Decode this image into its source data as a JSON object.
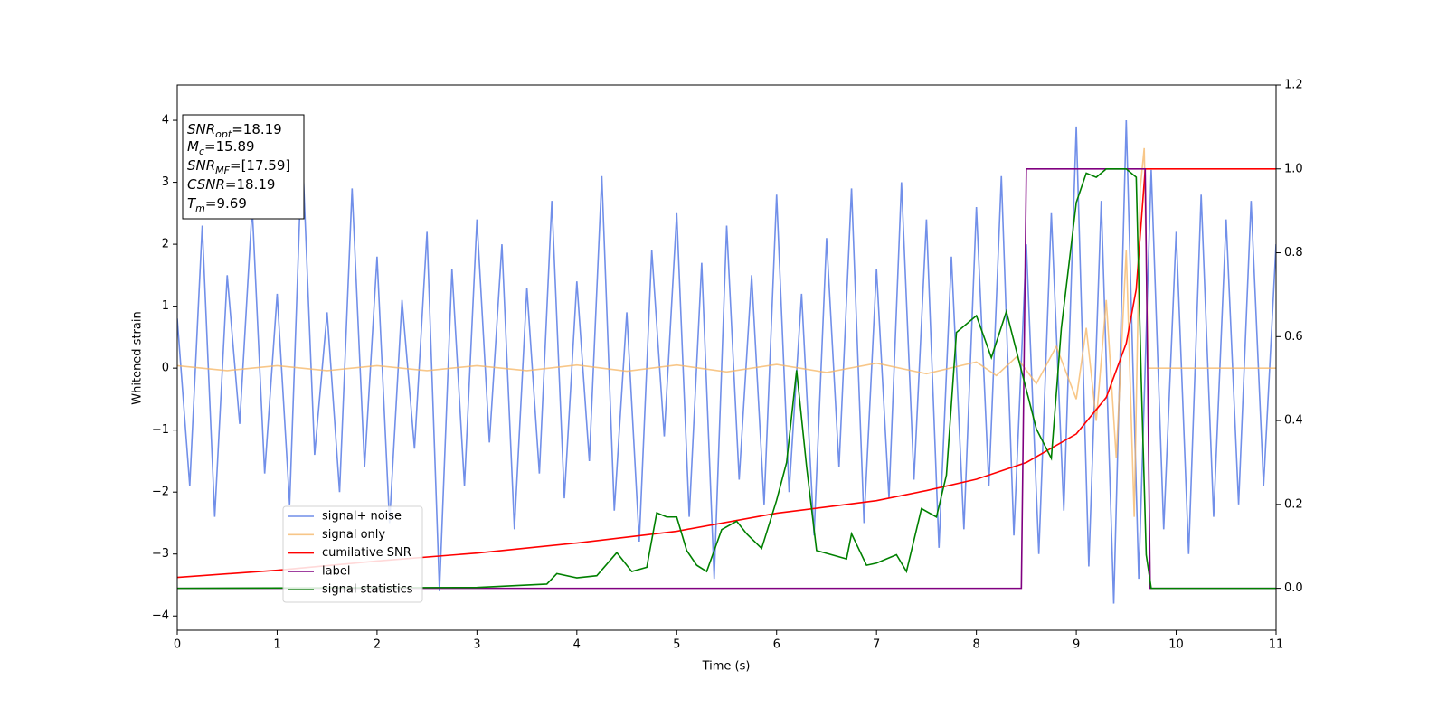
{
  "chart_data": {
    "type": "line",
    "xlabel": "Time (s)",
    "ylabel": "Whitened strain",
    "xlim": [
      0,
      11
    ],
    "xticks": [
      0,
      1,
      2,
      3,
      4,
      5,
      6,
      7,
      8,
      9,
      10,
      11
    ],
    "ylim": [
      -4.23,
      4.57
    ],
    "yticks": [
      {
        "value": -4,
        "label": "−4"
      },
      {
        "value": -3,
        "label": "−3"
      },
      {
        "value": -2,
        "label": "−2"
      },
      {
        "value": -1,
        "label": "−1"
      },
      0,
      1,
      2,
      3,
      4
    ],
    "y2lim": [
      -0.1,
      1.2
    ],
    "y2ticks": [
      {
        "value": 0,
        "label": "0.0"
      },
      {
        "value": 0.2,
        "label": "0.2"
      },
      {
        "value": 0.4,
        "label": "0.4"
      },
      {
        "value": 0.6,
        "label": "0.6"
      },
      {
        "value": 0.8,
        "label": "0.8"
      },
      {
        "value": 1.0,
        "label": "1.0"
      },
      {
        "value": 1.2,
        "label": "1.2"
      }
    ],
    "annotations": [
      {
        "name": "SNR",
        "sub": "opt",
        "text": "=18.19"
      },
      {
        "name": "M",
        "sub": "c",
        "text": "=15.89"
      },
      {
        "name": "SNR",
        "sub": "MF",
        "text": "=[17.59]"
      },
      {
        "name": "CSNR",
        "text": "=18.19"
      },
      {
        "name": "T",
        "sub": "m",
        "text": "=9.69"
      }
    ],
    "series": [
      {
        "name": "signal+ noise",
        "color": "#4169e1",
        "x": [
          0,
          0.125,
          0.25,
          0.375,
          0.5,
          0.625,
          0.75,
          0.875,
          1,
          1.125,
          1.25,
          1.375,
          1.5,
          1.625,
          1.75,
          1.875,
          2,
          2.125,
          2.25,
          2.375,
          2.5,
          2.625,
          2.75,
          2.875,
          3,
          3.125,
          3.25,
          3.375,
          3.5,
          3.625,
          3.75,
          3.875,
          4,
          4.125,
          4.25,
          4.375,
          4.5,
          4.625,
          4.75,
          4.875,
          5,
          5.125,
          5.25,
          5.375,
          5.5,
          5.625,
          5.75,
          5.875,
          6,
          6.125,
          6.25,
          6.375,
          6.5,
          6.625,
          6.75,
          6.875,
          7,
          7.125,
          7.25,
          7.375,
          7.5,
          7.625,
          7.75,
          7.875,
          8,
          8.125,
          8.25,
          8.375,
          8.5,
          8.625,
          8.75,
          8.875,
          9,
          9.125,
          9.25,
          9.375,
          9.5,
          9.625,
          9.75,
          9.875,
          10,
          10.125,
          10.25,
          10.375,
          10.5,
          10.625,
          10.75,
          10.875,
          11
        ],
        "values": [
          0.8,
          -1.9,
          2.3,
          -2.4,
          1.5,
          -0.9,
          2.6,
          -1.7,
          1.2,
          -2.2,
          3.6,
          -1.4,
          0.9,
          -2.0,
          2.9,
          -1.6,
          1.8,
          -2.5,
          1.1,
          -1.3,
          2.2,
          -3.6,
          1.6,
          -1.9,
          2.4,
          -1.2,
          2.0,
          -2.6,
          1.3,
          -1.7,
          2.7,
          -2.1,
          1.4,
          -1.5,
          3.1,
          -2.3,
          0.9,
          -2.8,
          1.9,
          -1.1,
          2.5,
          -2.4,
          1.7,
          -3.4,
          2.3,
          -1.8,
          1.5,
          -2.2,
          2.8,
          -2.0,
          1.2,
          -2.7,
          2.1,
          -1.6,
          2.9,
          -2.5,
          1.6,
          -2.1,
          3.0,
          -1.8,
          2.4,
          -2.9,
          1.8,
          -2.6,
          2.6,
          -1.9,
          3.1,
          -2.7,
          2.0,
          -3.0,
          2.5,
          -2.3,
          3.9,
          -3.2,
          2.7,
          -3.8,
          4.0,
          -3.4,
          3.2,
          -2.6,
          2.2,
          -3.0,
          2.8,
          -2.4,
          2.4,
          -2.2,
          2.7,
          -1.9,
          2.0
        ]
      },
      {
        "name": "signal only",
        "color": "#f5b461",
        "x": [
          0,
          0.5,
          1,
          1.5,
          2,
          2.5,
          3,
          3.5,
          4,
          4.5,
          5,
          5.5,
          6,
          6.5,
          7,
          7.5,
          8,
          8.2,
          8.4,
          8.6,
          8.8,
          9,
          9.1,
          9.2,
          9.3,
          9.4,
          9.5,
          9.58,
          9.64,
          9.68,
          9.72,
          11
        ],
        "values": [
          0.04,
          -0.04,
          0.04,
          -0.04,
          0.04,
          -0.04,
          0.04,
          -0.04,
          0.05,
          -0.05,
          0.05,
          -0.06,
          0.06,
          -0.07,
          0.08,
          -0.09,
          0.1,
          -0.12,
          0.18,
          -0.25,
          0.35,
          -0.5,
          0.65,
          -0.85,
          1.1,
          -1.45,
          1.9,
          -2.4,
          2.9,
          3.55,
          0,
          0
        ]
      },
      {
        "name": "cumilative SNR",
        "color": "#ff0000",
        "axis": "y2",
        "x": [
          0,
          1,
          2,
          3,
          4,
          5,
          6,
          7,
          7.5,
          8,
          8.5,
          9,
          9.3,
          9.5,
          9.6,
          9.69,
          11
        ],
        "values": [
          0.026,
          0.043,
          0.065,
          0.084,
          0.108,
          0.136,
          0.179,
          0.209,
          0.233,
          0.26,
          0.3,
          0.368,
          0.455,
          0.584,
          0.713,
          1.0,
          1.0
        ]
      },
      {
        "name": "label",
        "color": "#800080",
        "axis": "y2",
        "x": [
          0,
          8.45,
          8.5,
          9.69,
          9.74,
          11
        ],
        "values": [
          0,
          0,
          1,
          1,
          0,
          0
        ]
      },
      {
        "name": "signal statistics",
        "color": "#008000",
        "axis": "y2",
        "x": [
          0,
          3,
          3.7,
          3.8,
          4,
          4.2,
          4.4,
          4.55,
          4.7,
          4.8,
          4.9,
          5,
          5.1,
          5.2,
          5.3,
          5.45,
          5.6,
          5.7,
          5.85,
          6,
          6.1,
          6.2,
          6.3,
          6.4,
          6.55,
          6.7,
          6.75,
          6.9,
          7,
          7.2,
          7.3,
          7.45,
          7.6,
          7.7,
          7.8,
          8,
          8.15,
          8.3,
          8.45,
          8.6,
          8.75,
          8.85,
          9,
          9.1,
          9.2,
          9.3,
          9.5,
          9.6,
          9.65,
          9.7,
          9.75,
          11
        ],
        "values": [
          0,
          0.002,
          0.01,
          0.035,
          0.025,
          0.03,
          0.085,
          0.04,
          0.05,
          0.18,
          0.17,
          0.17,
          0.09,
          0.055,
          0.04,
          0.14,
          0.16,
          0.13,
          0.095,
          0.21,
          0.3,
          0.52,
          0.29,
          0.09,
          0.08,
          0.07,
          0.13,
          0.055,
          0.06,
          0.08,
          0.04,
          0.19,
          0.17,
          0.27,
          0.61,
          0.65,
          0.55,
          0.66,
          0.52,
          0.38,
          0.31,
          0.62,
          0.92,
          0.99,
          0.98,
          1.0,
          1.0,
          0.98,
          0.5,
          0.08,
          0,
          0
        ]
      }
    ]
  }
}
